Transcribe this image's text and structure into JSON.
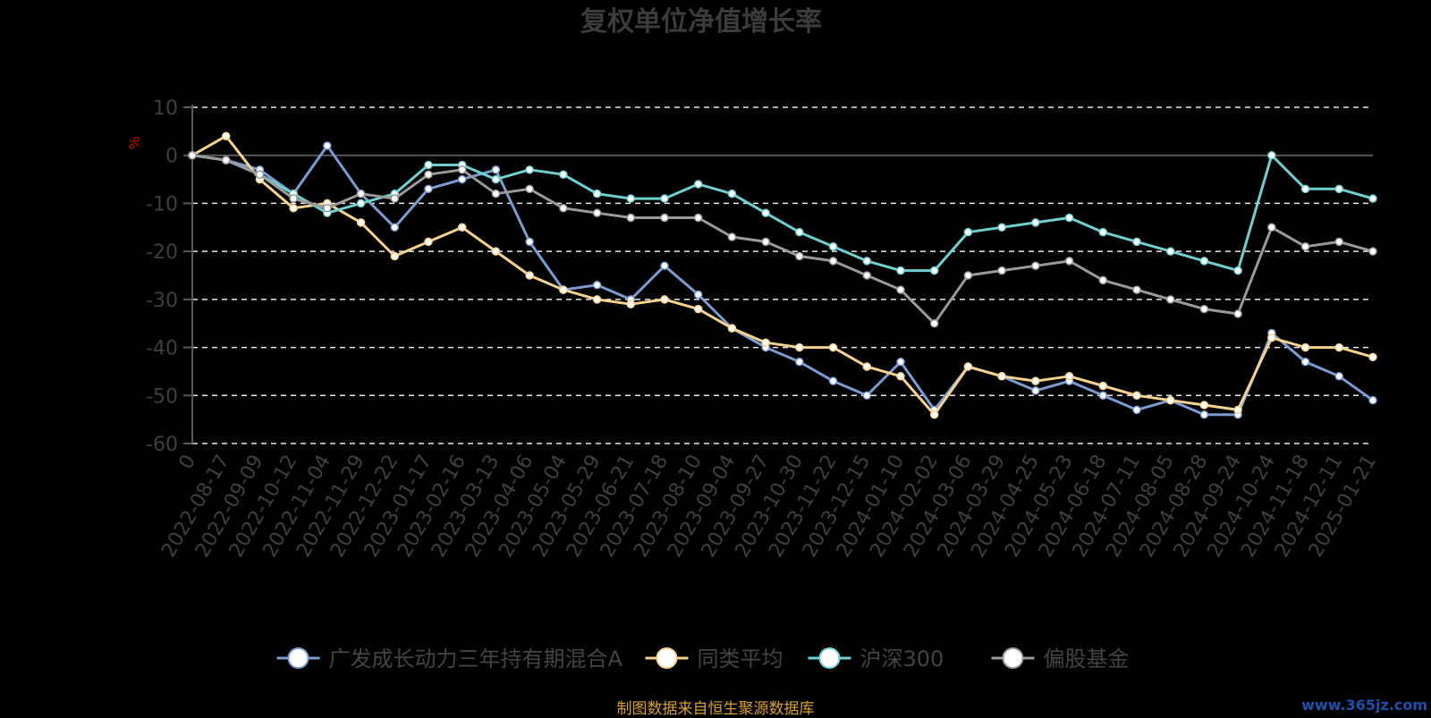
{
  "chart_data": {
    "type": "line",
    "title": "复权单位净值增长率",
    "ylabel": "%",
    "ylim": [
      -60,
      10
    ],
    "yticks": [
      10,
      0,
      -10,
      -20,
      -30,
      -40,
      -50,
      -60
    ],
    "grid": true,
    "legend_position": "bottom",
    "x_labels": [
      "0",
      "2022-08-17",
      "2022-09-09",
      "2022-10-12",
      "2022-11-04",
      "2022-11-29",
      "2022-12-22",
      "2023-01-17",
      "2023-02-16",
      "2023-03-13",
      "2023-04-06",
      "2023-05-04",
      "2023-05-29",
      "2023-06-21",
      "2023-07-18",
      "2023-08-10",
      "2023-09-04",
      "2023-09-27",
      "2023-10-30",
      "2023-11-22",
      "2023-12-15",
      "2024-01-10",
      "2024-02-02",
      "2024-03-06",
      "2024-03-29",
      "2024-04-25",
      "2024-05-23",
      "2024-06-18",
      "2024-07-11",
      "2024-08-05",
      "2024-08-28",
      "2024-09-24",
      "2024-10-24",
      "2024-11-18",
      "2024-12-11",
      "2025-01-21"
    ],
    "series": [
      {
        "name": "广发成长动力三年持有期混合A",
        "color": "#7b9bd1",
        "values": [
          0,
          -1,
          -3,
          -8,
          2,
          -8,
          -15,
          -7,
          -5,
          -3,
          -18,
          -28,
          -27,
          -30,
          -23,
          -29,
          -36,
          -40,
          -43,
          -47,
          -50,
          -43,
          -53,
          -44,
          -46,
          -49,
          -47,
          -50,
          -53,
          -51,
          -54,
          -54,
          -37,
          -43,
          -46,
          -51
        ]
      },
      {
        "name": "同类平均",
        "color": "#f6d28f",
        "values": [
          0,
          4,
          -5,
          -11,
          -10,
          -14,
          -21,
          -18,
          -15,
          -20,
          -25,
          -28,
          -30,
          -31,
          -30,
          -32,
          -36,
          -39,
          -40,
          -40,
          -44,
          -46,
          -54,
          -44,
          -46,
          -47,
          -46,
          -48,
          -50,
          -51,
          -52,
          -53,
          -38,
          -40,
          -40,
          -42
        ]
      },
      {
        "name": "沪深300",
        "color": "#6fd0cf",
        "values": [
          0,
          -1,
          -4,
          -8,
          -12,
          -10,
          -8,
          -2,
          -2,
          -5,
          -3,
          -4,
          -8,
          -9,
          -9,
          -6,
          -8,
          -12,
          -16,
          -19,
          -22,
          -24,
          -24,
          -16,
          -15,
          -14,
          -13,
          -16,
          -18,
          -20,
          -22,
          -24,
          0,
          -7,
          -7,
          -9
        ]
      },
      {
        "name": "偏股基金",
        "color": "#9a9a9a",
        "values": [
          0,
          -1,
          -4,
          -9,
          -11,
          -8,
          -9,
          -4,
          -3,
          -8,
          -7,
          -11,
          -12,
          -13,
          -13,
          -13,
          -17,
          -18,
          -21,
          -22,
          -25,
          -28,
          -35,
          -25,
          -24,
          -23,
          -22,
          -26,
          -28,
          -30,
          -32,
          -33,
          -15,
          -19,
          -18,
          -20
        ]
      }
    ]
  },
  "source_text": "制图数据来自恒生聚源数据库",
  "watermark": "www.365jz.com"
}
